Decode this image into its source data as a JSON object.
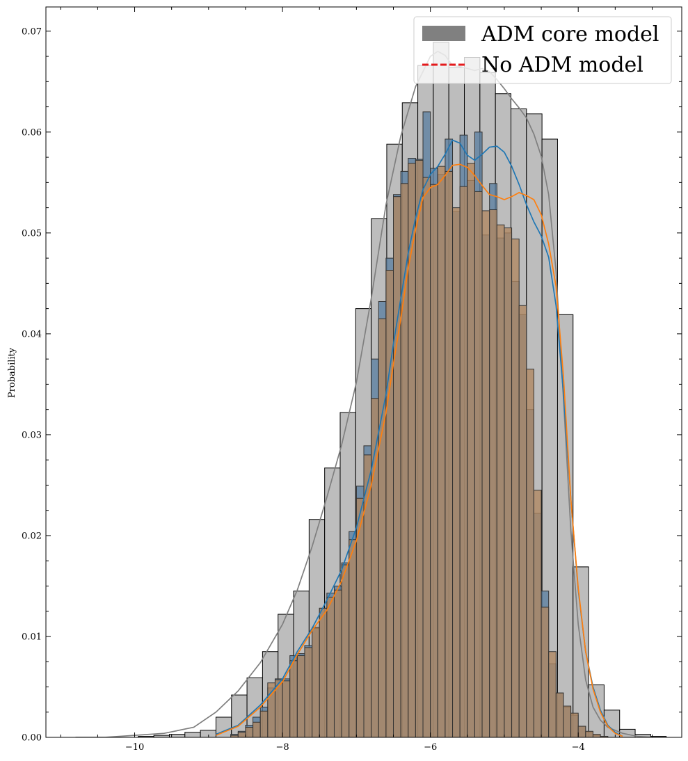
{
  "chart_data": {
    "type": "bar",
    "xlabel": "",
    "ylabel": "Probability",
    "xlim": [
      -11.2,
      -2.6
    ],
    "ylim": [
      0.0,
      0.0724
    ],
    "x_ticks": [
      -10,
      -8,
      -6,
      -4
    ],
    "x_tick_labels": [
      "−10",
      "−8",
      "−6",
      "−4"
    ],
    "y_ticks": [
      0.0,
      0.01,
      0.02,
      0.03,
      0.04,
      0.05,
      0.06,
      0.07
    ],
    "y_tick_labels": [
      "0.00",
      "0.01",
      "0.02",
      "0.03",
      "0.04",
      "0.05",
      "0.06",
      "0.07"
    ],
    "legend": {
      "position": "top-right",
      "entries": [
        {
          "label": "ADM core model",
          "style": "patch",
          "color": "#808080"
        },
        {
          "label": "No ADM model",
          "style": "dashed-line",
          "color": "#e41a1c"
        }
      ]
    },
    "series": [
      {
        "kind": "histogram",
        "fill": "#bdbdbd",
        "edge": "#000000",
        "kde_color": "#7f7f7f",
        "bin_width": 0.21,
        "bin_starts": [
          -10.79,
          -10.58,
          -10.37,
          -10.16,
          -9.95,
          -9.74,
          -9.53,
          -9.32,
          -9.11,
          -8.9,
          -8.69,
          -8.48,
          -8.27,
          -8.06,
          -7.85,
          -7.64,
          -7.43,
          -7.22,
          -7.01,
          -6.8,
          -6.59,
          -6.38,
          -6.17,
          -5.96,
          -5.75,
          -5.54,
          -5.33,
          -5.12,
          -4.91,
          -4.7,
          -4.49,
          -4.28,
          -4.07,
          -3.86,
          -3.65,
          -3.44,
          -3.23,
          -3.02,
          -2.81
        ],
        "values": [
          0.0,
          0.0,
          0.0,
          0.0,
          0.0001,
          0.0002,
          0.0003,
          0.0005,
          0.0007,
          0.002,
          0.0042,
          0.0059,
          0.0085,
          0.0122,
          0.0145,
          0.0216,
          0.0267,
          0.0322,
          0.0425,
          0.0514,
          0.0588,
          0.0629,
          0.0666,
          0.0689,
          0.0664,
          0.0674,
          0.0659,
          0.0638,
          0.0623,
          0.0618,
          0.0593,
          0.0419,
          0.0169,
          0.0052,
          0.0027,
          0.0008,
          0.0003,
          0.0001,
          0.0
        ],
        "kde": {
          "x": [
            -10.8,
            -10.4,
            -10.0,
            -9.6,
            -9.2,
            -8.9,
            -8.6,
            -8.3,
            -8.0,
            -7.8,
            -7.6,
            -7.4,
            -7.2,
            -7.0,
            -6.8,
            -6.6,
            -6.4,
            -6.2,
            -6.0,
            -5.9,
            -5.8,
            -5.7,
            -5.6,
            -5.5,
            -5.4,
            -5.3,
            -5.2,
            -5.1,
            -5.0,
            -4.9,
            -4.8,
            -4.7,
            -4.6,
            -4.5,
            -4.4,
            -4.3,
            -4.2,
            -4.1,
            -4.0,
            -3.9,
            -3.8,
            -3.7,
            -3.6,
            -3.4,
            -3.2,
            -3.0,
            -2.8
          ],
          "y": [
            0.0,
            0.0,
            0.0002,
            0.0004,
            0.001,
            0.0025,
            0.0046,
            0.0074,
            0.0112,
            0.0146,
            0.0189,
            0.0238,
            0.029,
            0.0352,
            0.0435,
            0.0528,
            0.0596,
            0.0645,
            0.0675,
            0.068,
            0.0676,
            0.0666,
            0.0665,
            0.0663,
            0.0661,
            0.0663,
            0.066,
            0.0652,
            0.0643,
            0.0633,
            0.0624,
            0.0614,
            0.0598,
            0.0576,
            0.0538,
            0.0462,
            0.0336,
            0.0205,
            0.0112,
            0.0057,
            0.003,
            0.0017,
            0.001,
            0.0004,
            0.0001,
            0.0,
            0.0
          ]
        }
      },
      {
        "kind": "histogram",
        "fill": "#5b7fa0",
        "edge": "#333333",
        "kde_color": "#1f77b4",
        "bin_width": 0.1,
        "bin_starts": [
          -8.8,
          -8.7,
          -8.6,
          -8.5,
          -8.4,
          -8.3,
          -8.2,
          -8.1,
          -8.0,
          -7.9,
          -7.8,
          -7.7,
          -7.6,
          -7.5,
          -7.4,
          -7.3,
          -7.2,
          -7.1,
          -7.0,
          -6.9,
          -6.8,
          -6.7,
          -6.6,
          -6.5,
          -6.4,
          -6.3,
          -6.2,
          -6.1,
          -6.0,
          -5.9,
          -5.8,
          -5.7,
          -5.6,
          -5.5,
          -5.4,
          -5.3,
          -5.2,
          -5.1,
          -5.0,
          -4.9,
          -4.8,
          -4.7,
          -4.6,
          -4.5,
          -4.4,
          -4.3,
          -4.2,
          -4.1,
          -4.0,
          -3.9,
          -3.8,
          -3.7,
          -3.6,
          -3.5,
          -3.4
        ],
        "values": [
          0.0,
          0.0003,
          0.0006,
          0.0012,
          0.002,
          0.003,
          0.0049,
          0.0058,
          0.0058,
          0.0081,
          0.0083,
          0.0091,
          0.0108,
          0.0128,
          0.0143,
          0.015,
          0.0173,
          0.0204,
          0.0249,
          0.0289,
          0.0375,
          0.0432,
          0.0475,
          0.0538,
          0.0561,
          0.0574,
          0.0573,
          0.062,
          0.0564,
          0.0558,
          0.0593,
          0.0521,
          0.0597,
          0.0552,
          0.06,
          0.0498,
          0.0549,
          0.0495,
          0.05,
          0.0452,
          0.0419,
          0.0325,
          0.0222,
          0.0145,
          0.0073,
          0.0044,
          0.003,
          0.0022,
          0.0011,
          0.0005,
          0.0002,
          0.0001,
          0.0,
          0.0,
          0.0
        ],
        "kde": {
          "x": [
            -8.9,
            -8.6,
            -8.3,
            -8.0,
            -7.8,
            -7.6,
            -7.4,
            -7.2,
            -7.0,
            -6.8,
            -6.6,
            -6.5,
            -6.4,
            -6.3,
            -6.2,
            -6.1,
            -6.0,
            -5.9,
            -5.8,
            -5.7,
            -5.6,
            -5.5,
            -5.4,
            -5.3,
            -5.2,
            -5.1,
            -5.0,
            -4.9,
            -4.8,
            -4.7,
            -4.6,
            -4.5,
            -4.4,
            -4.3,
            -4.2,
            -4.1,
            -4.0,
            -3.9,
            -3.8,
            -3.7,
            -3.6,
            -3.5,
            -3.4
          ],
          "y": [
            0.0003,
            0.0012,
            0.0032,
            0.0058,
            0.0085,
            0.0108,
            0.0136,
            0.0166,
            0.0208,
            0.0265,
            0.034,
            0.039,
            0.0435,
            0.048,
            0.0515,
            0.0543,
            0.0558,
            0.0566,
            0.0578,
            0.0592,
            0.0589,
            0.0577,
            0.0572,
            0.0578,
            0.0585,
            0.0586,
            0.058,
            0.0566,
            0.0548,
            0.0528,
            0.0511,
            0.0497,
            0.0476,
            0.0428,
            0.0341,
            0.0236,
            0.0146,
            0.0085,
            0.005,
            0.0027,
            0.0012,
            0.0005,
            0.0001
          ]
        }
      },
      {
        "kind": "histogram",
        "fill": "#b08760",
        "edge": "#333333",
        "kde_color": "#ff7f0e",
        "bin_width": 0.1,
        "bin_starts": [
          -8.8,
          -8.7,
          -8.6,
          -8.5,
          -8.4,
          -8.3,
          -8.2,
          -8.1,
          -8.0,
          -7.9,
          -7.8,
          -7.7,
          -7.6,
          -7.5,
          -7.4,
          -7.3,
          -7.2,
          -7.1,
          -7.0,
          -6.9,
          -6.8,
          -6.7,
          -6.6,
          -6.5,
          -6.4,
          -6.3,
          -6.2,
          -6.1,
          -6.0,
          -5.9,
          -5.8,
          -5.7,
          -5.6,
          -5.5,
          -5.4,
          -5.3,
          -5.2,
          -5.1,
          -5.0,
          -4.9,
          -4.8,
          -4.7,
          -4.6,
          -4.5,
          -4.4,
          -4.3,
          -4.2,
          -4.1,
          -4.0,
          -3.9,
          -3.8,
          -3.7,
          -3.6,
          -3.5,
          -3.4
        ],
        "values": [
          0.0,
          0.0002,
          0.0005,
          0.001,
          0.0015,
          0.0026,
          0.0054,
          0.0057,
          0.0056,
          0.0076,
          0.0081,
          0.0089,
          0.0109,
          0.0128,
          0.0139,
          0.0146,
          0.0171,
          0.0196,
          0.0237,
          0.028,
          0.0336,
          0.0415,
          0.0463,
          0.0536,
          0.0549,
          0.0569,
          0.0572,
          0.0555,
          0.0548,
          0.0566,
          0.0561,
          0.0525,
          0.0546,
          0.0569,
          0.0541,
          0.0522,
          0.0523,
          0.0508,
          0.0505,
          0.0494,
          0.0428,
          0.0365,
          0.0245,
          0.0129,
          0.0085,
          0.0044,
          0.0031,
          0.0024,
          0.0011,
          0.0006,
          0.0003,
          0.0001,
          0.0,
          0.0,
          0.0
        ],
        "kde": {
          "x": [
            -8.9,
            -8.6,
            -8.3,
            -8.0,
            -7.8,
            -7.6,
            -7.4,
            -7.2,
            -7.0,
            -6.8,
            -6.6,
            -6.5,
            -6.4,
            -6.3,
            -6.2,
            -6.1,
            -6.0,
            -5.9,
            -5.8,
            -5.7,
            -5.6,
            -5.5,
            -5.4,
            -5.3,
            -5.2,
            -5.1,
            -5.0,
            -4.9,
            -4.8,
            -4.7,
            -4.6,
            -4.5,
            -4.4,
            -4.3,
            -4.2,
            -4.1,
            -4.0,
            -3.9,
            -3.8,
            -3.7,
            -3.6,
            -3.5,
            -3.4
          ],
          "y": [
            0.0002,
            0.0011,
            0.003,
            0.0055,
            0.0082,
            0.0106,
            0.0126,
            0.0155,
            0.0195,
            0.025,
            0.0322,
            0.037,
            0.0415,
            0.0465,
            0.0503,
            0.0535,
            0.0545,
            0.0548,
            0.0557,
            0.0567,
            0.0568,
            0.0565,
            0.0557,
            0.0547,
            0.0538,
            0.0536,
            0.0533,
            0.0536,
            0.054,
            0.0537,
            0.0533,
            0.0518,
            0.0489,
            0.0447,
            0.0358,
            0.0236,
            0.0148,
            0.0085,
            0.0048,
            0.0025,
            0.0011,
            0.0004,
            0.0001
          ]
        }
      }
    ]
  }
}
